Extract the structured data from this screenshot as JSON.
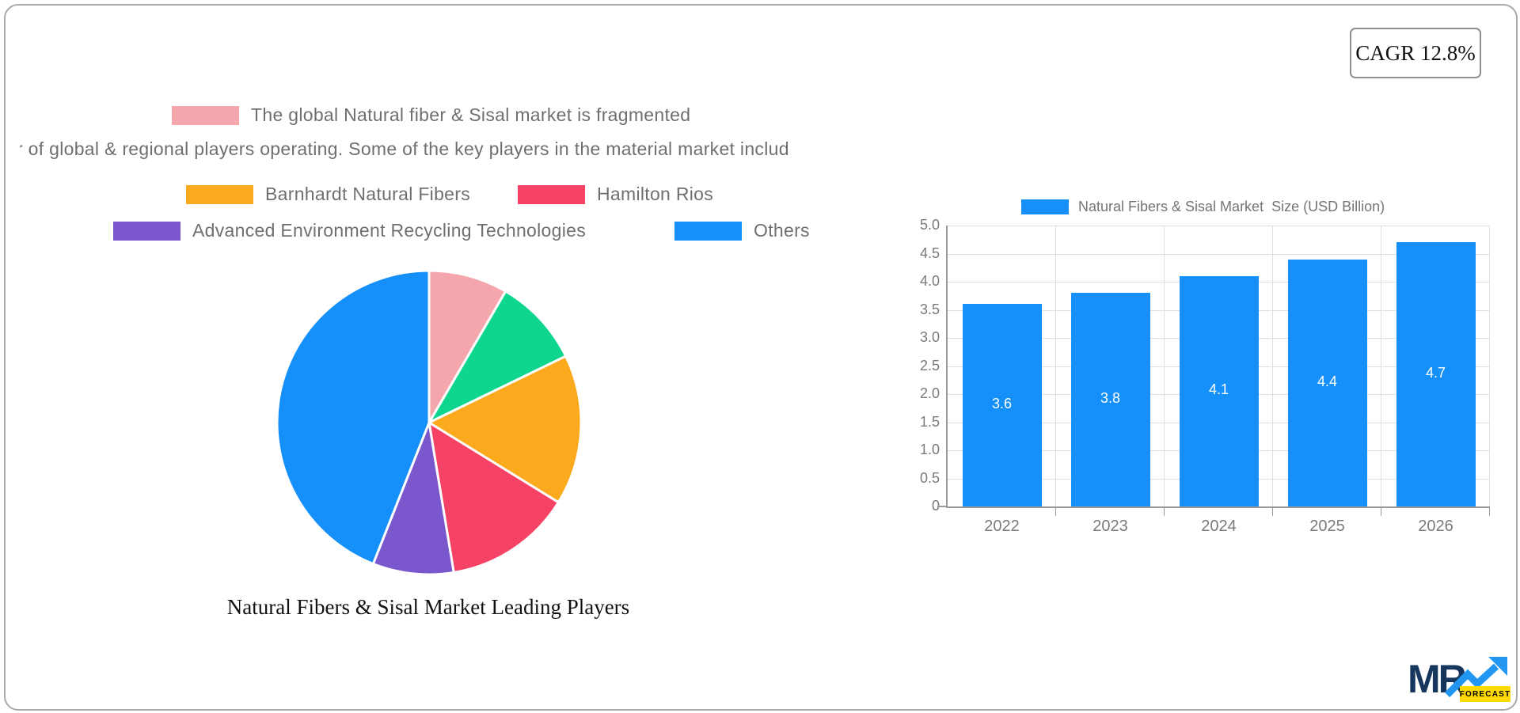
{
  "badge": {
    "label": "CAGR 12.8%"
  },
  "legend": {
    "row1": {
      "color": "#F5A6AC",
      "label": "The global Natural fiber & Sisal market is fragmented"
    },
    "row2": {
      "label": "r of global & regional players operating. Some of the key players in the material market includ"
    },
    "row3": [
      {
        "color": "#FBA91D",
        "label": "Barnhardt Natural Fibers"
      },
      {
        "color": "#F64365",
        "label": "Hamilton Rios"
      }
    ],
    "row4": [
      {
        "color": "#7B57CE",
        "label": "Advanced Environment Recycling Technologies"
      },
      {
        "color": "#1590FA",
        "label": "Others"
      }
    ]
  },
  "pie_caption": "Natural Fibers & Sisal Market Leading Players",
  "chart_data": [
    {
      "type": "pie",
      "title": "Natural Fibers & Sisal Market Leading Players",
      "labels": [
        "The global Natural fiber & Sisal market is fragmented",
        "",
        "Barnhardt Natural Fibers",
        "Hamilton Rios",
        "Advanced Environment Recycling Technologies",
        "Others"
      ],
      "values_percent": [
        8.4,
        9.4,
        16.0,
        13.6,
        8.6,
        44.0
      ],
      "colors": [
        "#F5A6AC",
        "#0ED68E",
        "#FBA91D",
        "#F64365",
        "#7B57CE",
        "#1590FA"
      ],
      "start_angle_deg": 0,
      "direction": "clockwise",
      "legend_position": "top"
    },
    {
      "type": "bar",
      "title": "Natural Fibers & Sisal Market  Size (USD Billion)",
      "categories": [
        "2022",
        "2023",
        "2024",
        "2025",
        "2026"
      ],
      "values": [
        3.6,
        3.8,
        4.1,
        4.4,
        4.7
      ],
      "value_labels": [
        "3.6",
        "3.8",
        "4.1",
        "4.4",
        "4.7"
      ],
      "bar_color": "#1590FA",
      "value_label_color": "#ffffff",
      "ylim": [
        0,
        5
      ],
      "ytick_step": 0.5,
      "yticks": [
        "5.0",
        "4.5",
        "4.0",
        "3.5",
        "3.0",
        "2.5",
        "2.0",
        "1.5",
        "1.0",
        "0.5",
        "0"
      ],
      "grid": true,
      "legend_position": "top"
    }
  ],
  "logo": {
    "text": "MR",
    "sub": "FORECAST",
    "navy": "#17365d",
    "blue": "#2196f3",
    "yellow": "#ffd903"
  }
}
